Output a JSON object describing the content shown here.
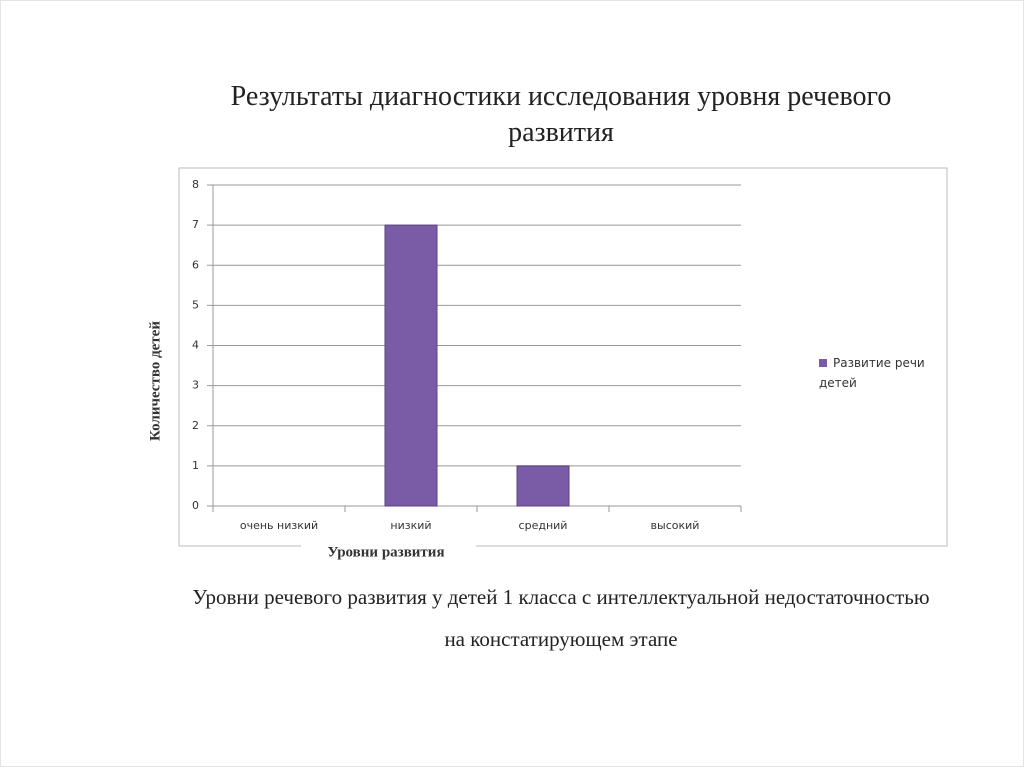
{
  "chart_data": {
    "type": "bar",
    "title": "Результаты диагностики исследования уровня речевого развития",
    "caption": "Уровни речевого развития у детей 1 класса с интеллектуальной недостаточностью на констатирующем этапе",
    "categories": [
      "очень низкий",
      "низкий",
      "средний",
      "высокий"
    ],
    "series": [
      {
        "name": "Развитие речи детей",
        "color": "#7a5ca6",
        "values": [
          0,
          7,
          1,
          0
        ]
      }
    ],
    "ylim": [
      0,
      8
    ],
    "yticks": [
      0,
      1,
      2,
      3,
      4,
      5,
      6,
      7,
      8
    ],
    "grid": true,
    "ylabel": "Количество детей",
    "xlabel": "Уровни развития",
    "legend": "right"
  }
}
